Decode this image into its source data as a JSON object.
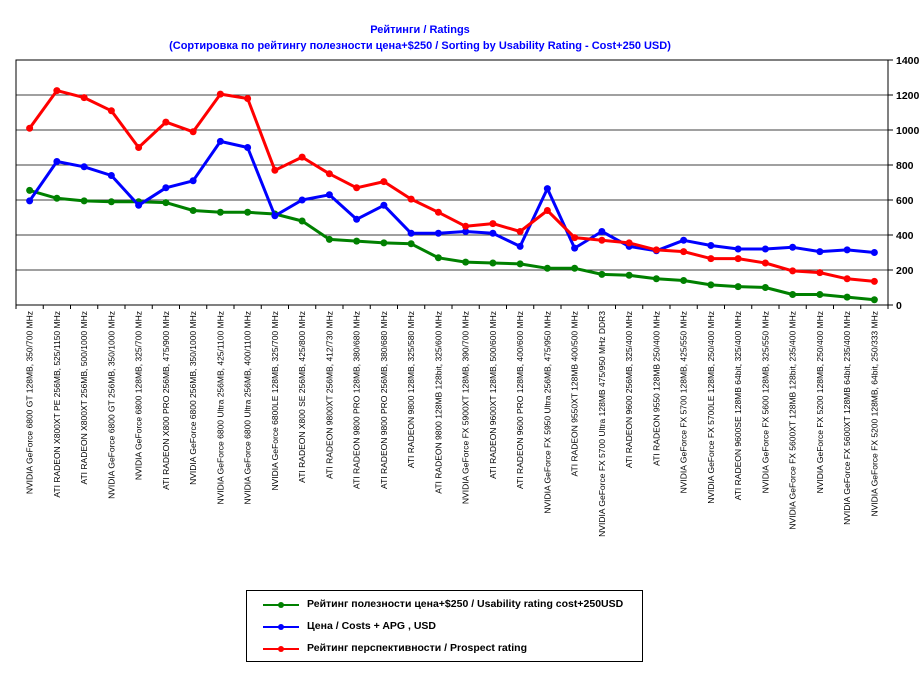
{
  "chart_data": {
    "type": "line",
    "title": "Рейтинги / Ratings",
    "subtitle": "(Сортировка по рейтингу полезности цена+$250 / Sorting by Usability Rating - Cost+250 USD)",
    "xlabel": "",
    "ylabel": "",
    "ylim": [
      0,
      1400
    ],
    "yticks": [
      0,
      200,
      400,
      600,
      800,
      1000,
      1200,
      1400
    ],
    "y_axis_side": "right",
    "grid": "horizontal",
    "legend_position": "bottom",
    "categories": [
      "NVIDIA GeForce 6800 GT 128MB, 350/700 MHz",
      "ATI RADEON X800XT PE 256MB, 525/1150 MHz",
      "ATI RADEON X800XT 256MB, 500/1000 MHz",
      "NVIDIA GeForce 6800 GT 256MB, 350/1000 MHz",
      "NVIDIA GeForce 6800 128MB, 325/700 MHz",
      "ATI RADEON X800 PRO 256MB, 475/900 MHz",
      "NVIDIA GeForce 6800 256MB, 350/1000 MHz",
      "NVIDIA GeForce 6800 Ultra 256MB, 425/1100 MHz",
      "NVIDIA GeForce 6800 Ultra 256MB, 400/1100 MHz",
      "NVIDIA GeForce 6800LE 128MB, 325/700 MHz",
      "ATI RADEON X800 SE 256MB, 425/800 MHz",
      "ATI RADEON 9800XT 256MB, 412/730 MHz",
      "ATI RADEON 9800 PRO 128MB, 380/680 MHz",
      "ATI RADEON 9800 PRO 256MB, 380/680 MHz",
      "ATI RADEON 9800 128MB, 325/580 MHz",
      "ATI RADEON 9800 128MB 128bit, 325/600 MHz",
      "NVIDIA GeForce FX 5900XT 128MB, 390/700 MHz",
      "ATI RADEON 9600XT 128MB, 500/600 MHz",
      "ATI RADEON 9600 PRO 128MB, 400/600 MHz",
      "NVIDIA GeForce FX 5950 Ultra 256MB, 475/950 MHz",
      "ATI RADEON 9550XT 128MB 400/500 MHz",
      "NVIDIA GeForce FX 5700 Ultra 128MB 475/950 MHz DDR3",
      "ATI RADEON 9600 256MB, 325/400 MHz",
      "ATI RADEON 9550 128MB 250/400 MHz",
      "NVIDIA GeForce FX 5700 128MB, 425/550 MHz",
      "NVIDIA GeForce FX 5700LE 128MB, 250/400 MHz",
      "ATI RADEON 9600SE 128MB 64bit, 325/400 MHz",
      "NVIDIA GeForce FX 5600 128MB, 325/550 MHz",
      "NVIDIA GeForce FX 5600XT 128MB 128bit, 235/400 MHz",
      "NVIDIA GeForce FX 5200 128MB, 250/400 MHz",
      "NVIDIA GeForce FX 5600XT 128MB 64bit, 235/400 MHz",
      "NVIDIA GeForce FX 5200 128MB, 64bit, 250/333 MHz"
    ],
    "series": [
      {
        "name": "Рейтинг полезности цена+$250 / Usability rating cost+250USD",
        "color": "#008000",
        "values": [
          655,
          610,
          595,
          590,
          590,
          585,
          540,
          530,
          530,
          520,
          480,
          375,
          365,
          355,
          350,
          270,
          245,
          240,
          235,
          210,
          210,
          175,
          170,
          150,
          140,
          115,
          105,
          100,
          60,
          60,
          45,
          30
        ]
      },
      {
        "name": "Цена / Costs + APG , USD",
        "color": "#0000ff",
        "values": [
          595,
          820,
          790,
          740,
          570,
          670,
          710,
          935,
          900,
          510,
          600,
          630,
          490,
          570,
          410,
          410,
          420,
          410,
          335,
          665,
          325,
          420,
          335,
          310,
          370,
          340,
          320,
          320,
          330,
          305,
          315,
          300
        ]
      },
      {
        "name": "Рейтинг перспективности / Prospect rating",
        "color": "#ff0000",
        "values": [
          1010,
          1225,
          1185,
          1110,
          900,
          1045,
          990,
          1205,
          1180,
          770,
          845,
          750,
          670,
          705,
          605,
          530,
          450,
          465,
          420,
          540,
          385,
          370,
          355,
          315,
          305,
          265,
          265,
          240,
          195,
          185,
          150,
          135
        ]
      }
    ]
  }
}
